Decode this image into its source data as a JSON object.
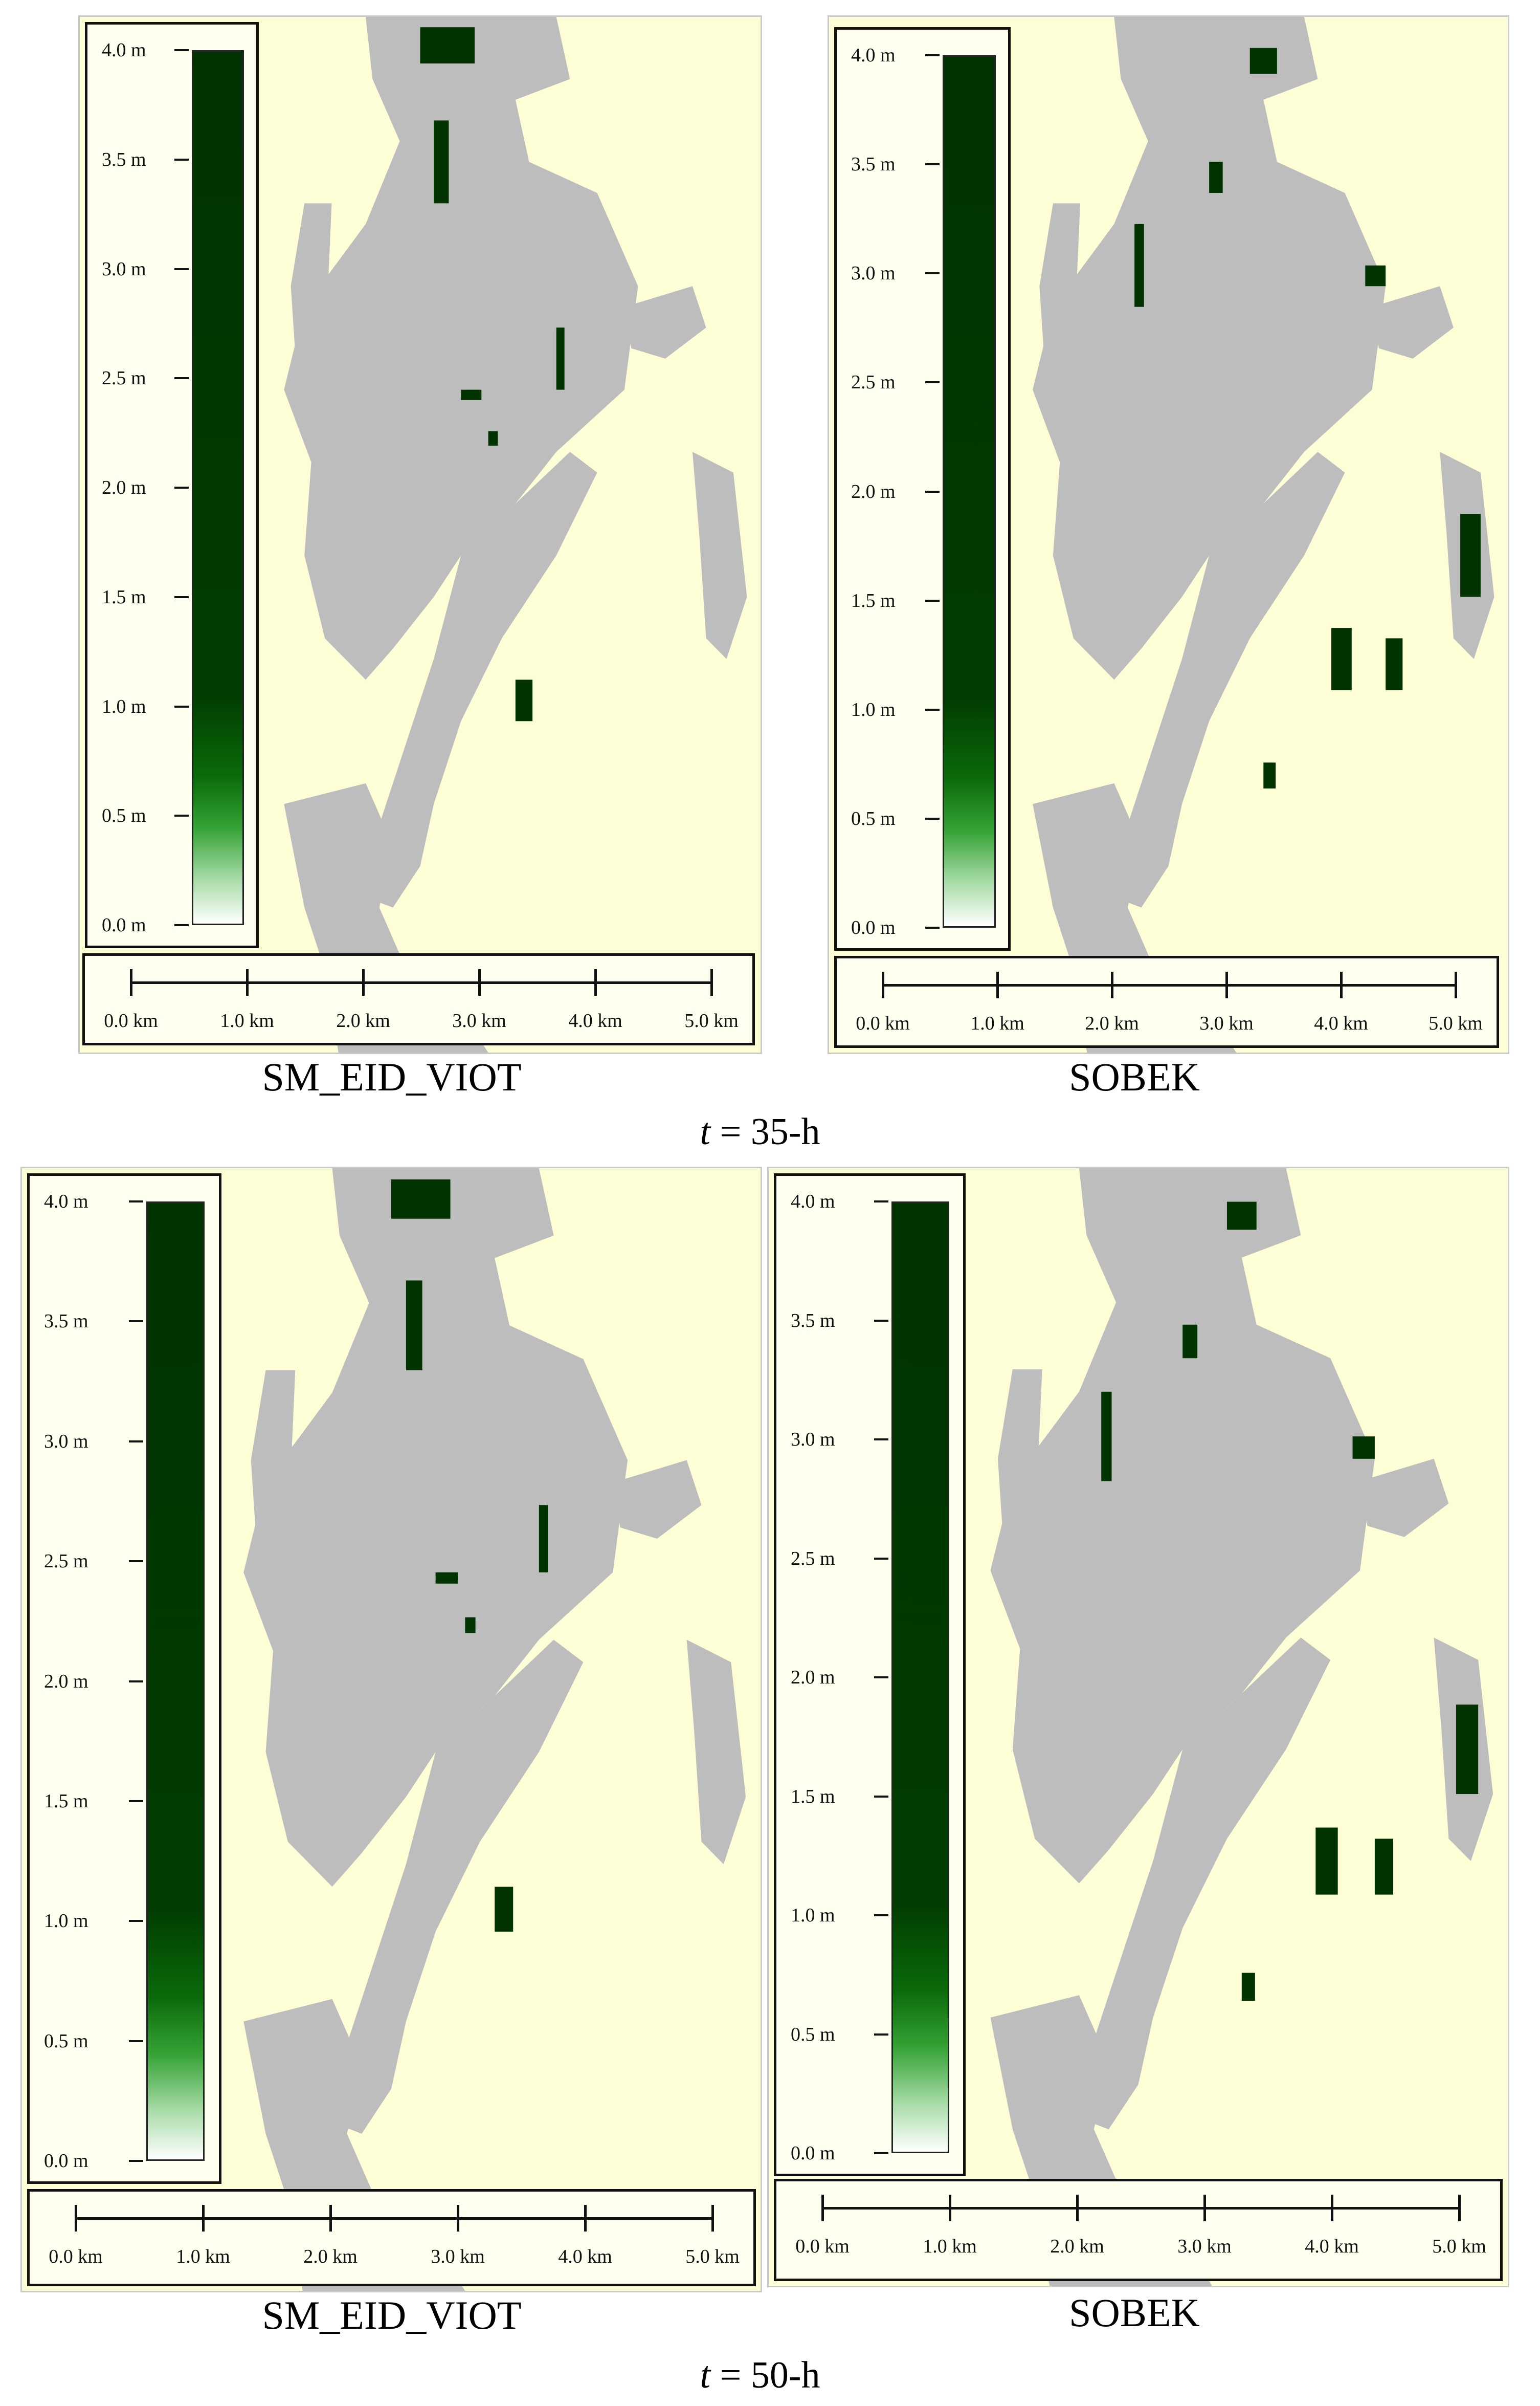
{
  "colors": {
    "background": "#fdfdd6",
    "flood_extent": "#bdbdbd",
    "depth_deep": "#003300",
    "depth_shallow": "#ffffff",
    "frame": "#111111"
  },
  "legend": {
    "labels": [
      "4.0 m",
      "3.5 m",
      "3.0 m",
      "2.5 m",
      "2.0 m",
      "1.5 m",
      "1.0 m",
      "0.5 m",
      "0.0 m"
    ],
    "max_depth_m": 4.0,
    "min_depth_m": 0.0
  },
  "scale_bar": {
    "labels": [
      "0.0 km",
      "1.0 km",
      "2.0 km",
      "3.0 km",
      "4.0 km",
      "5.0 km"
    ]
  },
  "rows": [
    {
      "time_var": "t",
      "time_value": " = 35-h",
      "panels": [
        {
          "model": "SM_EID_VIOT",
          "icon": "flood-depth-map"
        },
        {
          "model": "SOBEK",
          "icon": "flood-depth-map"
        }
      ]
    },
    {
      "time_var": "t",
      "time_value": " = 50-h",
      "panels": [
        {
          "model": "SM_EID_VIOT",
          "icon": "flood-depth-map"
        },
        {
          "model": "SOBEK",
          "icon": "flood-depth-map"
        }
      ]
    }
  ]
}
